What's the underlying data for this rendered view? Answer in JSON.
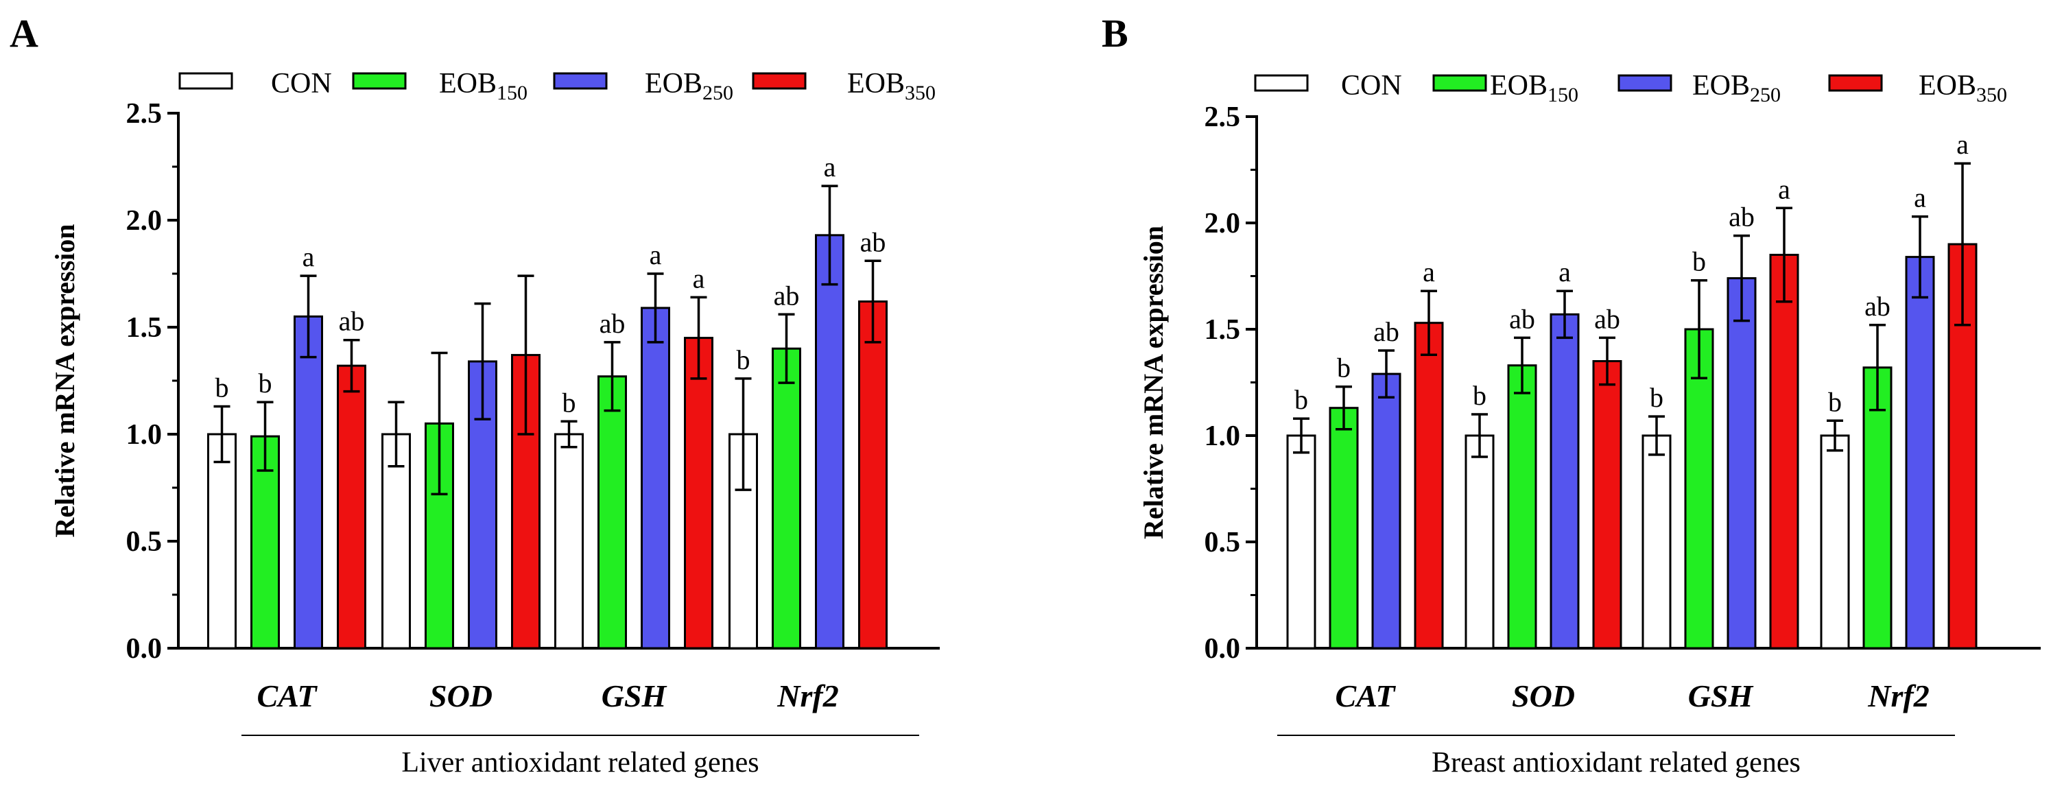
{
  "colors": {
    "CON": "#ffffff",
    "EOB150": "#22ee22",
    "EOB250": "#5555ee",
    "EOB350": "#ee1111",
    "axis": "#000000"
  },
  "chart_data": [
    {
      "panel_label": "A",
      "type": "bar",
      "title": "",
      "xlabel": "Liver antioxidant related genes",
      "ylabel": "Relative mRNA expression",
      "ylim": [
        0,
        2.5
      ],
      "yticks": [
        "0.0",
        "0.5",
        "1.0",
        "1.5",
        "2.0",
        "2.5"
      ],
      "categories": [
        "CAT",
        "SOD",
        "GSH",
        "Nrf2"
      ],
      "legend": [
        {
          "key": "CON",
          "base": "CON",
          "sub": ""
        },
        {
          "key": "EOB150",
          "base": "EOB",
          "sub": "150"
        },
        {
          "key": "EOB250",
          "base": "EOB",
          "sub": "250"
        },
        {
          "key": "EOB350",
          "base": "EOB",
          "sub": "350"
        }
      ],
      "series": [
        {
          "name": "CON",
          "values": [
            1.0,
            1.0,
            1.0,
            1.0
          ],
          "errors": [
            0.13,
            0.15,
            0.06,
            0.26
          ],
          "letters": [
            "b",
            "",
            "b",
            "b"
          ]
        },
        {
          "name": "EOB150",
          "values": [
            0.99,
            1.05,
            1.27,
            1.4
          ],
          "errors": [
            0.16,
            0.33,
            0.16,
            0.16
          ],
          "letters": [
            "b",
            "",
            "ab",
            "ab"
          ]
        },
        {
          "name": "EOB250",
          "values": [
            1.55,
            1.34,
            1.59,
            1.93
          ],
          "errors": [
            0.19,
            0.27,
            0.16,
            0.23
          ],
          "letters": [
            "a",
            "",
            "a",
            "a"
          ]
        },
        {
          "name": "EOB350",
          "values": [
            1.32,
            1.37,
            1.45,
            1.62
          ],
          "errors": [
            0.12,
            0.37,
            0.19,
            0.19
          ],
          "letters": [
            "ab",
            "",
            "a",
            "ab"
          ]
        }
      ]
    },
    {
      "panel_label": "B",
      "type": "bar",
      "title": "",
      "xlabel": "Breast antioxidant related genes",
      "ylabel": "Relative mRNA expression",
      "ylim": [
        0,
        2.5
      ],
      "yticks": [
        "0.0",
        "0.5",
        "1.0",
        "1.5",
        "2.0",
        "2.5"
      ],
      "categories": [
        "CAT",
        "SOD",
        "GSH",
        "Nrf2"
      ],
      "legend": [
        {
          "key": "CON",
          "base": "CON",
          "sub": ""
        },
        {
          "key": "EOB150",
          "base": "EOB",
          "sub": "150"
        },
        {
          "key": "EOB250",
          "base": "EOB",
          "sub": "250"
        },
        {
          "key": "EOB350",
          "base": "EOB",
          "sub": "350"
        }
      ],
      "series": [
        {
          "name": "CON",
          "values": [
            1.0,
            1.0,
            1.0,
            1.0
          ],
          "errors": [
            0.08,
            0.1,
            0.09,
            0.07
          ],
          "letters": [
            "b",
            "b",
            "b",
            "b"
          ]
        },
        {
          "name": "EOB150",
          "values": [
            1.13,
            1.33,
            1.5,
            1.32
          ],
          "errors": [
            0.1,
            0.13,
            0.23,
            0.2
          ],
          "letters": [
            "b",
            "ab",
            "b",
            "ab"
          ]
        },
        {
          "name": "EOB250",
          "values": [
            1.29,
            1.57,
            1.74,
            1.84
          ],
          "errors": [
            0.11,
            0.11,
            0.2,
            0.19
          ],
          "letters": [
            "ab",
            "a",
            "ab",
            "a"
          ]
        },
        {
          "name": "EOB350",
          "values": [
            1.53,
            1.35,
            1.85,
            1.9
          ],
          "errors": [
            0.15,
            0.11,
            0.22,
            0.38
          ],
          "letters": [
            "a",
            "ab",
            "a",
            "a"
          ]
        }
      ]
    }
  ]
}
